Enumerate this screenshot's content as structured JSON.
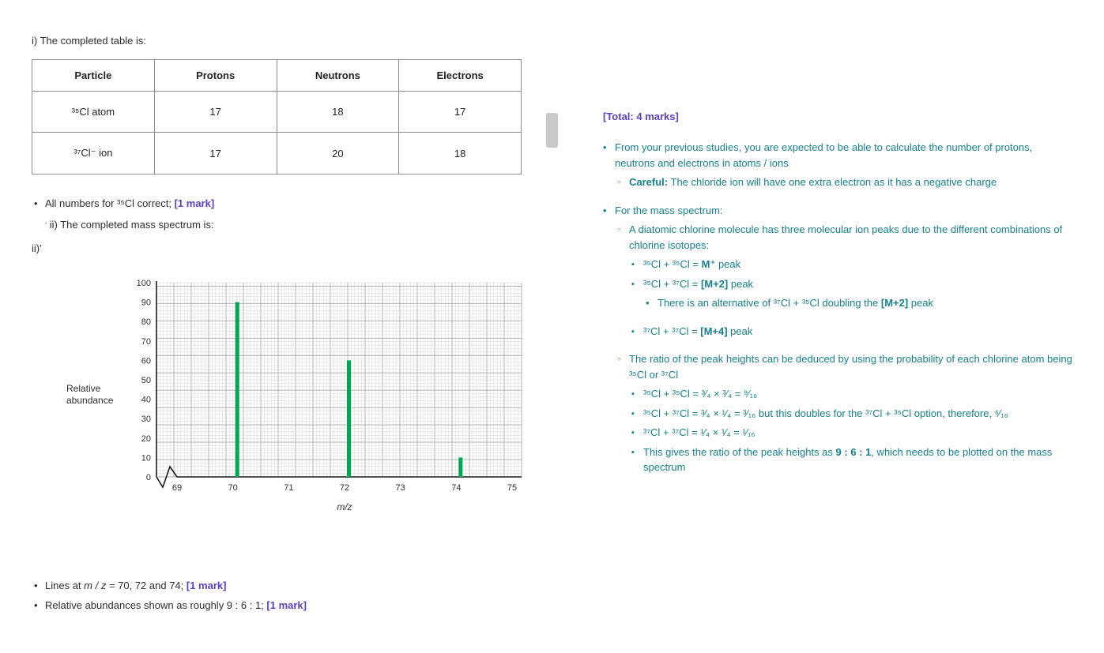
{
  "colors": {
    "teal": "#16808E",
    "purple": "#5B3FC4",
    "green": "#00A651",
    "text": "#2e2e2e",
    "border": "#8c8c8c",
    "thumb": "#c9c9c9"
  },
  "left": {
    "intro": "i) The completed table is:",
    "table": {
      "headers": [
        "Particle",
        "Protons",
        "Neutrons",
        "Electrons"
      ],
      "rows": [
        {
          "cells": [
            "³⁵Cl atom",
            "17",
            "18",
            "17"
          ]
        },
        {
          "cells": [
            "³⁷Cl⁻ ion",
            "17",
            "20",
            "18"
          ]
        }
      ]
    },
    "bullet_all_numbers": [
      {
        "t": "All numbers for ³⁵Cl correct; "
      },
      {
        "t": "[1 mark]",
        "cls": "mark"
      }
    ],
    "line_ii": [
      {
        "t": "'",
        "cls": "stray"
      },
      {
        "t": "  ii) The completed mass spectrum is:"
      }
    ],
    "label_ii": "ii)'",
    "bottom_bullets": [
      {
        "segments": [
          {
            "t": "Lines at "
          },
          {
            "t": "m / z",
            "i": true
          },
          {
            "t": " = 70, 72 and 74; "
          },
          {
            "t": "[1 mark]",
            "cls": "mark"
          }
        ]
      },
      {
        "segments": [
          {
            "t": "Relative abundances shown as roughly 9 : 6 : 1; "
          },
          {
            "t": "[1 mark]",
            "cls": "mark"
          }
        ]
      }
    ]
  },
  "chart_data": {
    "type": "bar",
    "title": "",
    "xlabel": "m/z",
    "ylabel": "Relative abundance",
    "x": [
      70,
      72,
      74
    ],
    "values": [
      90,
      60,
      10
    ],
    "xlim": [
      69,
      75
    ],
    "ylim": [
      0,
      100
    ],
    "x_ticks": [
      69,
      70,
      71,
      72,
      73,
      74,
      75
    ],
    "y_ticks": [
      0,
      10,
      20,
      30,
      40,
      50,
      60,
      70,
      80,
      90,
      100
    ],
    "bar_color": "#00A651",
    "grid": "graph-paper",
    "grid_minor_color": "#d4d4d4",
    "grid_major_color": "#a8a8a8",
    "axis_break": true
  },
  "right": {
    "total": "[Total: 4 marks]",
    "items": [
      {
        "segments": [
          {
            "t": "From your previous studies, you are expected to be able to calculate the number of protons, neutrons and electrons in atoms / ions"
          }
        ]
      },
      {
        "segments": [
          {
            "t": "Careful:",
            "b": true
          },
          {
            "t": " The chloride ion will have one extra electron as it has a negative charge"
          }
        ]
      },
      {
        "segments": [
          {
            "t": "For the mass spectrum:"
          }
        ]
      },
      {
        "segments": [
          {
            "t": "A diatomic chlorine molecule has three molecular ion peaks due to the different combinations of chlorine isotopes:"
          }
        ]
      },
      {
        "segments": [
          {
            "t": "³⁵Cl + ³⁵Cl = "
          },
          {
            "t": "M⁺",
            "b": true
          },
          {
            "t": " peak"
          }
        ]
      },
      {
        "segments": [
          {
            "t": "³⁵Cl + ³⁷Cl = "
          },
          {
            "t": "[M+2]",
            "b": true
          },
          {
            "t": " peak"
          }
        ]
      },
      {
        "segments": [
          {
            "t": "There is an alternative of ³⁷Cl + ³⁵Cl doubling the "
          },
          {
            "t": "[M+2]",
            "b": true
          },
          {
            "t": " peak"
          }
        ]
      },
      {
        "segments": [
          {
            "t": "³⁷Cl + ³⁷Cl = "
          },
          {
            "t": "[M+4]",
            "b": true
          },
          {
            "t": " peak"
          }
        ]
      },
      {
        "segments": [
          {
            "t": "The ratio of the peak heights can be deduced by using the probability of each chlorine atom being ³⁵Cl or ³⁷Cl"
          }
        ]
      },
      {
        "segments": [
          {
            "t": "³⁵Cl + ³⁵Cl = ³⁄₄ × ³⁄₄ = ⁹⁄₁₆"
          }
        ]
      },
      {
        "segments": [
          {
            "t": "³⁵Cl + ³⁷Cl = ³⁄₄ × ¹⁄₄ = ³⁄₁₆ but this doubles for the ³⁷Cl + ³⁵Cl option, therefore, ⁶⁄₁₆"
          }
        ]
      },
      {
        "segments": [
          {
            "t": "³⁷Cl + ³⁷Cl = ¹⁄₄ × ¹⁄₄ = ¹⁄₁₆"
          }
        ]
      },
      {
        "segments": [
          {
            "t": "This gives the ratio of the peak heights as "
          },
          {
            "t": "9 : 6 : 1",
            "b": true
          },
          {
            "t": ", which needs to be plotted on the mass spectrum"
          }
        ]
      }
    ]
  }
}
